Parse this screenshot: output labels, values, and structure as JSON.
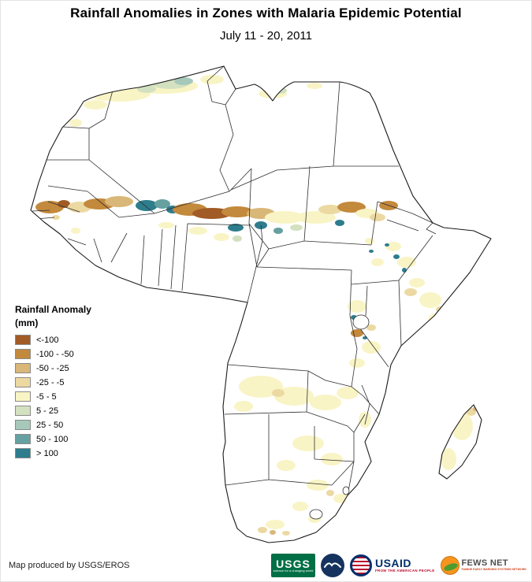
{
  "header": {
    "title": "Rainfall Anomalies in Zones with Malaria Epidemic Potential",
    "subtitle": "July 11 - 20, 2011"
  },
  "legend": {
    "title": "Rainfall Anomaly",
    "units": "(mm)",
    "classes": [
      {
        "label": "<-100",
        "color": "#a15b25"
      },
      {
        "label": "-100 - -50",
        "color": "#c3893c"
      },
      {
        "label": "-50 - -25",
        "color": "#d9b778"
      },
      {
        "label": "-25 - -5",
        "color": "#ecd9a2"
      },
      {
        "label": "-5 - 5",
        "color": "#f9f4c5"
      },
      {
        "label": "5 - 25",
        "color": "#d3e1c0"
      },
      {
        "label": "25 - 50",
        "color": "#a6c8ba"
      },
      {
        "label": "50 - 100",
        "color": "#66a0a0"
      },
      {
        "label": "> 100",
        "color": "#2d7d8d"
      }
    ]
  },
  "footer": {
    "credit": "Map produced by USGS/EROS"
  },
  "logos": {
    "usgs": {
      "name": "USGS",
      "tagline": "science for a changing world",
      "color": "#006f45"
    },
    "noaa": {
      "name": "NOAA",
      "color": "#16335f"
    },
    "usaid": {
      "name": "USAID",
      "tagline": "FROM THE AMERICAN PEOPLE",
      "blue": "#002f6c",
      "red": "#ba0c2f"
    },
    "fewsnet": {
      "name": "FEWS NET",
      "tagline": "FAMINE EARLY WARNING SYSTEMS NETWORK",
      "orange": "#f7941d"
    }
  }
}
